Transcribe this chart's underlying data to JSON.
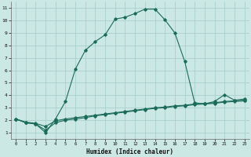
{
  "xlabel": "Humidex (Indice chaleur)",
  "bg_color": "#cce8e4",
  "grid_color": "#aad0cc",
  "line_color": "#1a6b5a",
  "xlim": [
    -0.5,
    23.5
  ],
  "ylim": [
    0.5,
    11.5
  ],
  "xticks": [
    0,
    1,
    2,
    3,
    4,
    5,
    6,
    7,
    8,
    9,
    10,
    11,
    12,
    13,
    14,
    15,
    16,
    17,
    18,
    19,
    20,
    21,
    22,
    23
  ],
  "yticks": [
    1,
    2,
    3,
    4,
    5,
    6,
    7,
    8,
    9,
    10,
    11
  ],
  "line1_x": [
    0,
    1,
    2,
    3,
    4,
    5,
    6,
    7,
    8,
    9,
    10,
    11,
    12,
    13,
    14,
    15,
    16,
    17,
    18,
    19,
    20,
    21,
    22,
    23
  ],
  "line1_y": [
    2.1,
    1.8,
    1.7,
    1.0,
    2.1,
    3.5,
    6.1,
    7.6,
    8.3,
    8.85,
    10.1,
    10.25,
    10.55,
    10.9,
    10.9,
    10.05,
    9.0,
    6.7,
    3.4,
    3.3,
    3.5,
    4.05,
    3.6,
    3.7
  ],
  "line2_x": [
    0,
    1,
    2,
    3,
    4,
    5,
    6,
    7,
    8,
    9,
    10,
    11,
    12,
    13,
    14,
    15,
    16,
    17,
    18,
    19,
    20,
    21,
    22,
    23
  ],
  "line2_y": [
    2.1,
    1.85,
    1.75,
    1.5,
    1.95,
    2.1,
    2.2,
    2.3,
    2.4,
    2.5,
    2.6,
    2.7,
    2.8,
    2.9,
    3.0,
    3.05,
    3.15,
    3.2,
    3.3,
    3.35,
    3.4,
    3.5,
    3.55,
    3.6
  ],
  "line3_x": [
    0,
    1,
    2,
    3,
    4,
    5,
    6,
    7,
    8,
    9,
    10,
    11,
    12,
    13,
    14,
    15,
    16,
    17,
    18,
    19,
    20,
    21,
    22,
    23
  ],
  "line3_y": [
    2.1,
    1.8,
    1.7,
    1.2,
    1.8,
    2.0,
    2.1,
    2.2,
    2.35,
    2.45,
    2.55,
    2.65,
    2.75,
    2.85,
    2.95,
    3.0,
    3.1,
    3.15,
    3.25,
    3.3,
    3.35,
    3.45,
    3.5,
    3.55
  ]
}
